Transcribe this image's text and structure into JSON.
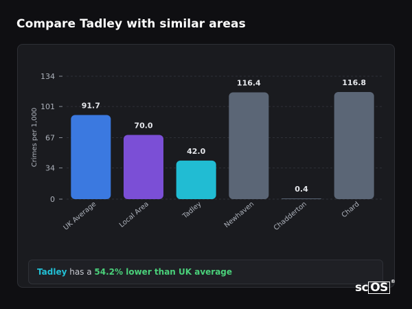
{
  "page": {
    "title": "Compare Tadley with similar areas"
  },
  "chart_data": {
    "type": "bar",
    "categories": [
      "UK Average",
      "Local Area",
      "Tadley",
      "Newhaven",
      "Chadderton",
      "Chard"
    ],
    "values": [
      91.7,
      70.0,
      42.0,
      116.4,
      0.4,
      116.8
    ],
    "value_labels": [
      "91.7",
      "70.0",
      "42.0",
      "116.4",
      "0.4",
      "116.8"
    ],
    "colors": [
      "#3b79e0",
      "#7b4fd6",
      "#21bcd3",
      "#5b6676",
      "#5b6676",
      "#5b6676"
    ],
    "ylabel": "Crimes per 1,000",
    "xlabel": "",
    "yticks": [
      0,
      34,
      67,
      101,
      134
    ],
    "ylim": [
      0,
      134
    ],
    "grid": true
  },
  "summary": {
    "place": "Tadley",
    "middle": " has a ",
    "delta": "54.2% lower than UK average"
  },
  "logo": {
    "text_main": "sc",
    "text_boxed": "OS",
    "mark": "®"
  }
}
